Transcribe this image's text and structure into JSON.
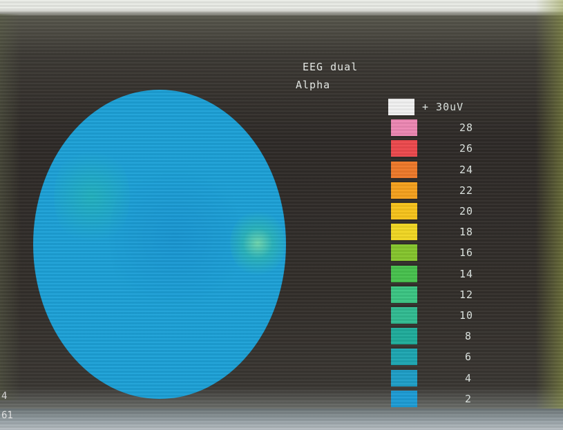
{
  "screen": {
    "title_line1": "EEG  dual",
    "title_line2": "Alpha"
  },
  "scale": {
    "items": [
      {
        "label": "+  30uV",
        "color": "#f2f2f2"
      },
      {
        "label": "28",
        "color": "#ee88b4"
      },
      {
        "label": "26",
        "color": "#ee4a4e"
      },
      {
        "label": "24",
        "color": "#f07a2a"
      },
      {
        "label": "22",
        "color": "#f6a21e"
      },
      {
        "label": "20",
        "color": "#f8c41c"
      },
      {
        "label": "18",
        "color": "#f2d824"
      },
      {
        "label": "16",
        "color": "#86c62e"
      },
      {
        "label": "14",
        "color": "#48c24e"
      },
      {
        "label": "12",
        "color": "#3cc684"
      },
      {
        "label": "10",
        "color": "#32bc92"
      },
      {
        "label": "8",
        "color": "#20ad9c"
      },
      {
        "label": "6",
        "color": "#1ea7b2"
      },
      {
        "label": "4",
        "color": "#1f9fc8"
      },
      {
        "label": "2",
        "color": "#1e9dd6"
      }
    ]
  },
  "corner": {
    "left_top": "4",
    "left_bottom": "61"
  }
}
